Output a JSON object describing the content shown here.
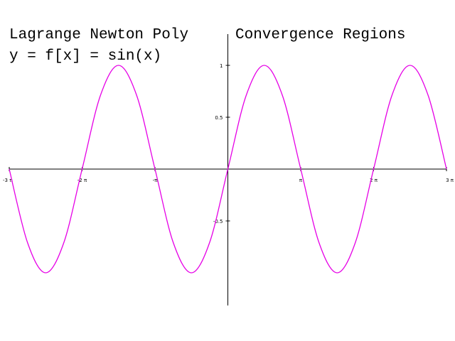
{
  "header": {
    "title_left": "Lagrange Newton Poly",
    "title_right": "Convergence Regions",
    "equation": "y = f[x] = sin(x)"
  },
  "chart_data": {
    "type": "line",
    "title": "Lagrange Newton Poly   Convergence Regions",
    "subtitle": "y = f[x] = sin(x)",
    "xlabel": "",
    "ylabel": "",
    "function": "sin(x)",
    "xlim": [
      -9.42478,
      9.42478
    ],
    "ylim": [
      -1.3,
      1.3
    ],
    "grid": false,
    "x_ticks": [
      {
        "value": -9.42478,
        "label": "-3 π"
      },
      {
        "value": -6.28319,
        "label": "-2 π"
      },
      {
        "value": -3.14159,
        "label": "-π"
      },
      {
        "value": 3.14159,
        "label": "π"
      },
      {
        "value": 6.28319,
        "label": "2 π"
      },
      {
        "value": 9.42478,
        "label": "3 π"
      }
    ],
    "y_ticks": [
      {
        "value": 1,
        "label": "1"
      },
      {
        "value": 0.5,
        "label": "0.5"
      },
      {
        "value": -0.5,
        "label": "-0.5"
      }
    ],
    "series": [
      {
        "color": "#e600e6",
        "x": [
          -9.42478,
          -8.63938,
          -7.85398,
          -7.06858,
          -6.28319,
          -5.49779,
          -4.71239,
          -3.92699,
          -3.14159,
          -2.35619,
          -1.5708,
          -0.7854,
          0,
          0.7854,
          1.5708,
          2.35619,
          3.14159,
          3.92699,
          4.71239,
          5.49779,
          6.28319,
          7.06858,
          7.85398,
          8.63938,
          9.42478
        ],
        "y": [
          0,
          -0.7071,
          -1,
          -0.7071,
          0,
          0.7071,
          1,
          0.7071,
          0,
          -0.7071,
          -1,
          -0.7071,
          0,
          0.7071,
          1,
          0.7071,
          0,
          -0.7071,
          -1,
          -0.7071,
          0,
          0.7071,
          1,
          0.7071,
          0
        ]
      }
    ]
  }
}
